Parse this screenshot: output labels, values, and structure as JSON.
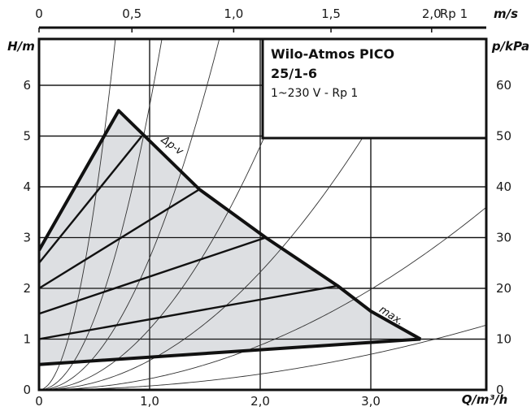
{
  "chart_data": {
    "type": "line",
    "title": "Wilo-Atmos PICO",
    "subtitle": "25/1-6",
    "subtitle2": "1~230 V -  Rp 1",
    "xlabel": "Q/m³/h",
    "ylabel": "H/m",
    "y2label": "p/kPa",
    "top_label": "m/s",
    "top_pipe_label": "Rp 1",
    "xlim": [
      0,
      4.0
    ],
    "ylim": [
      0,
      7.0
    ],
    "x_ticks": [
      "0",
      "1,0",
      "2,0",
      "3,0"
    ],
    "x_tick_values": [
      0,
      1.0,
      2.0,
      3.0
    ],
    "y_ticks": [
      "0",
      "1",
      "2",
      "3",
      "4",
      "5",
      "6"
    ],
    "y_tick_values": [
      0,
      1,
      2,
      3,
      4,
      5,
      6
    ],
    "y2_ticks": [
      "0",
      "10",
      "20",
      "30",
      "40",
      "50",
      "60"
    ],
    "top_ticks": [
      "0",
      "0,5",
      "1,0",
      "1,5",
      "2,0"
    ],
    "top_tick_q": [
      0,
      0.84,
      1.76,
      2.64,
      3.55
    ],
    "grid": true,
    "series": [
      {
        "name": "max.",
        "x": [
          0,
          0.72,
          1.45,
          2.05,
          2.7,
          3.0,
          3.45
        ],
        "y": [
          2.75,
          5.5,
          3.95,
          3.0,
          2.05,
          1.55,
          1.0
        ]
      },
      {
        "name": "Δp-v",
        "x": [
          0,
          0.72
        ],
        "y": [
          2.75,
          5.5
        ]
      }
    ],
    "control_lines": [
      {
        "x": [
          0,
          0.93
        ],
        "y": [
          2.5,
          5.0
        ]
      },
      {
        "x": [
          0,
          1.45
        ],
        "y": [
          2.0,
          3.95
        ]
      },
      {
        "x": [
          0,
          2.05
        ],
        "y": [
          1.5,
          3.0
        ]
      },
      {
        "x": [
          0,
          2.7
        ],
        "y": [
          1.0,
          2.05
        ]
      },
      {
        "x": [
          0,
          3.45
        ],
        "y": [
          0.5,
          1.0
        ]
      }
    ],
    "system_curve_k": [
      14.5,
      5.6,
      2.6,
      1.2,
      0.58,
      0.22,
      0.078
    ],
    "colors": {
      "fill": "#dddfe2",
      "curve": "#111111",
      "thin": "#333333"
    }
  }
}
